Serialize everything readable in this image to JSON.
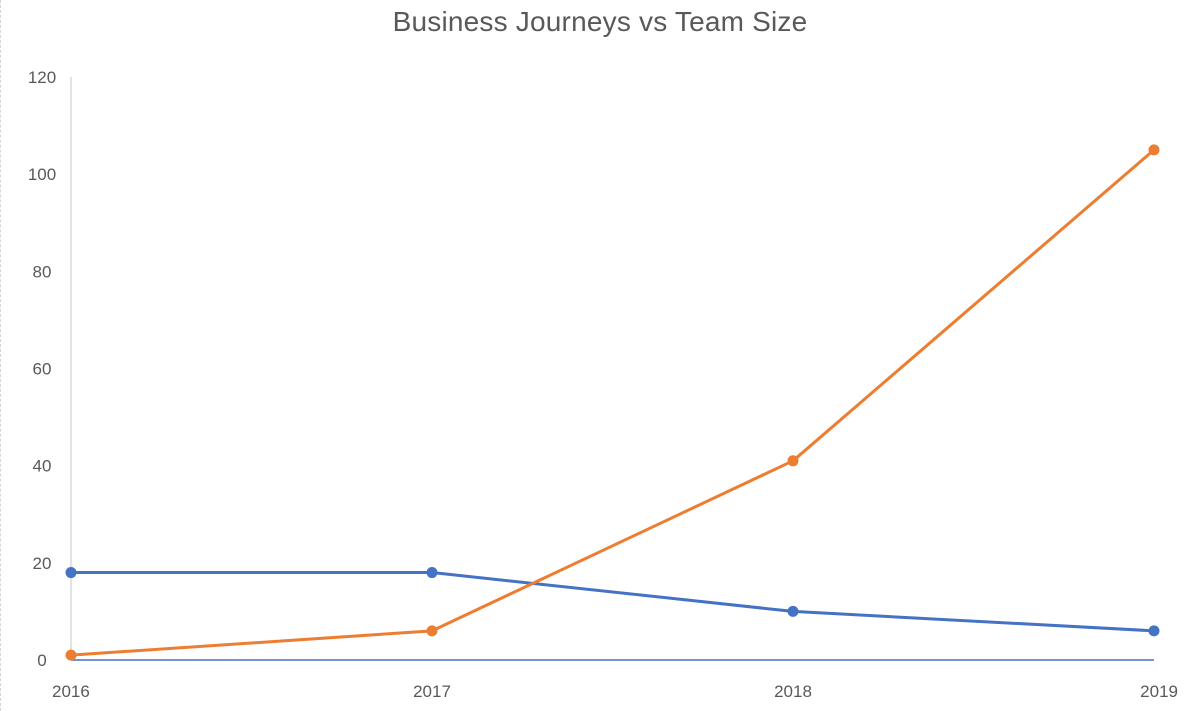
{
  "chart_data": {
    "type": "line",
    "title": "Business Journeys vs Team Size",
    "xlabel": "",
    "ylabel": "",
    "categories": [
      "2016",
      "2017",
      "2018",
      "2019"
    ],
    "ylim": [
      0,
      120
    ],
    "yticks": [
      "0",
      "20",
      "40",
      "60",
      "80",
      "100",
      "120"
    ],
    "grid": false,
    "legend": "none",
    "series": [
      {
        "color": "#4472c4",
        "values": [
          18,
          18,
          10,
          6
        ]
      },
      {
        "color": "#ed7d31",
        "values": [
          1,
          6,
          41,
          105
        ]
      }
    ]
  }
}
